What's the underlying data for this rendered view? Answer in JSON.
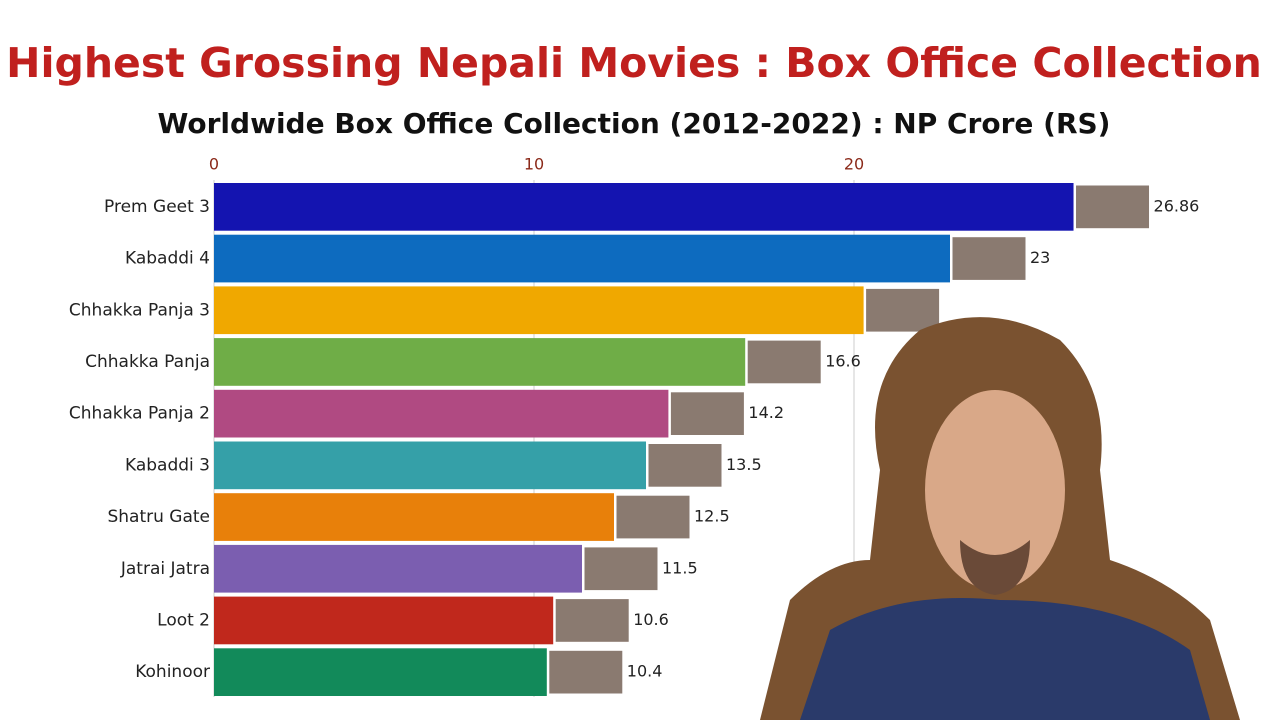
{
  "chart_data": {
    "type": "barh",
    "title": "Highest Grossing Nepali Movies : Box Office Collection",
    "subtitle": "Worldwide Box Office Collection (2012-2022) : NP Crore (RS)",
    "categories": [
      "Prem Geet 3",
      "Kabaddi 4",
      "Chhakka Panja 3",
      "Chhakka Panja",
      "Chhakka Panja 2",
      "Kabaddi 3",
      "Shatru Gate",
      "Jatrai Jatra",
      "Loot 2",
      "Kohinoor"
    ],
    "values": [
      26.86,
      23,
      20.3,
      16.6,
      14.2,
      13.5,
      12.5,
      11.5,
      10.6,
      10.4
    ],
    "value_labels": [
      "26.86",
      "23",
      null,
      "16.6",
      "14.2",
      "13.5",
      "12.5",
      "11.5",
      "10.6",
      "10.4"
    ],
    "colors": [
      "#1414b0",
      "#0d6bbf",
      "#f0a800",
      "#6fad47",
      "#b04a82",
      "#35a0a8",
      "#e8800a",
      "#7b5eb0",
      "#c0281c",
      "#128a5a"
    ],
    "xlim": [
      0,
      33
    ],
    "xticks": [
      0,
      10,
      20
    ],
    "grid": true
  }
}
